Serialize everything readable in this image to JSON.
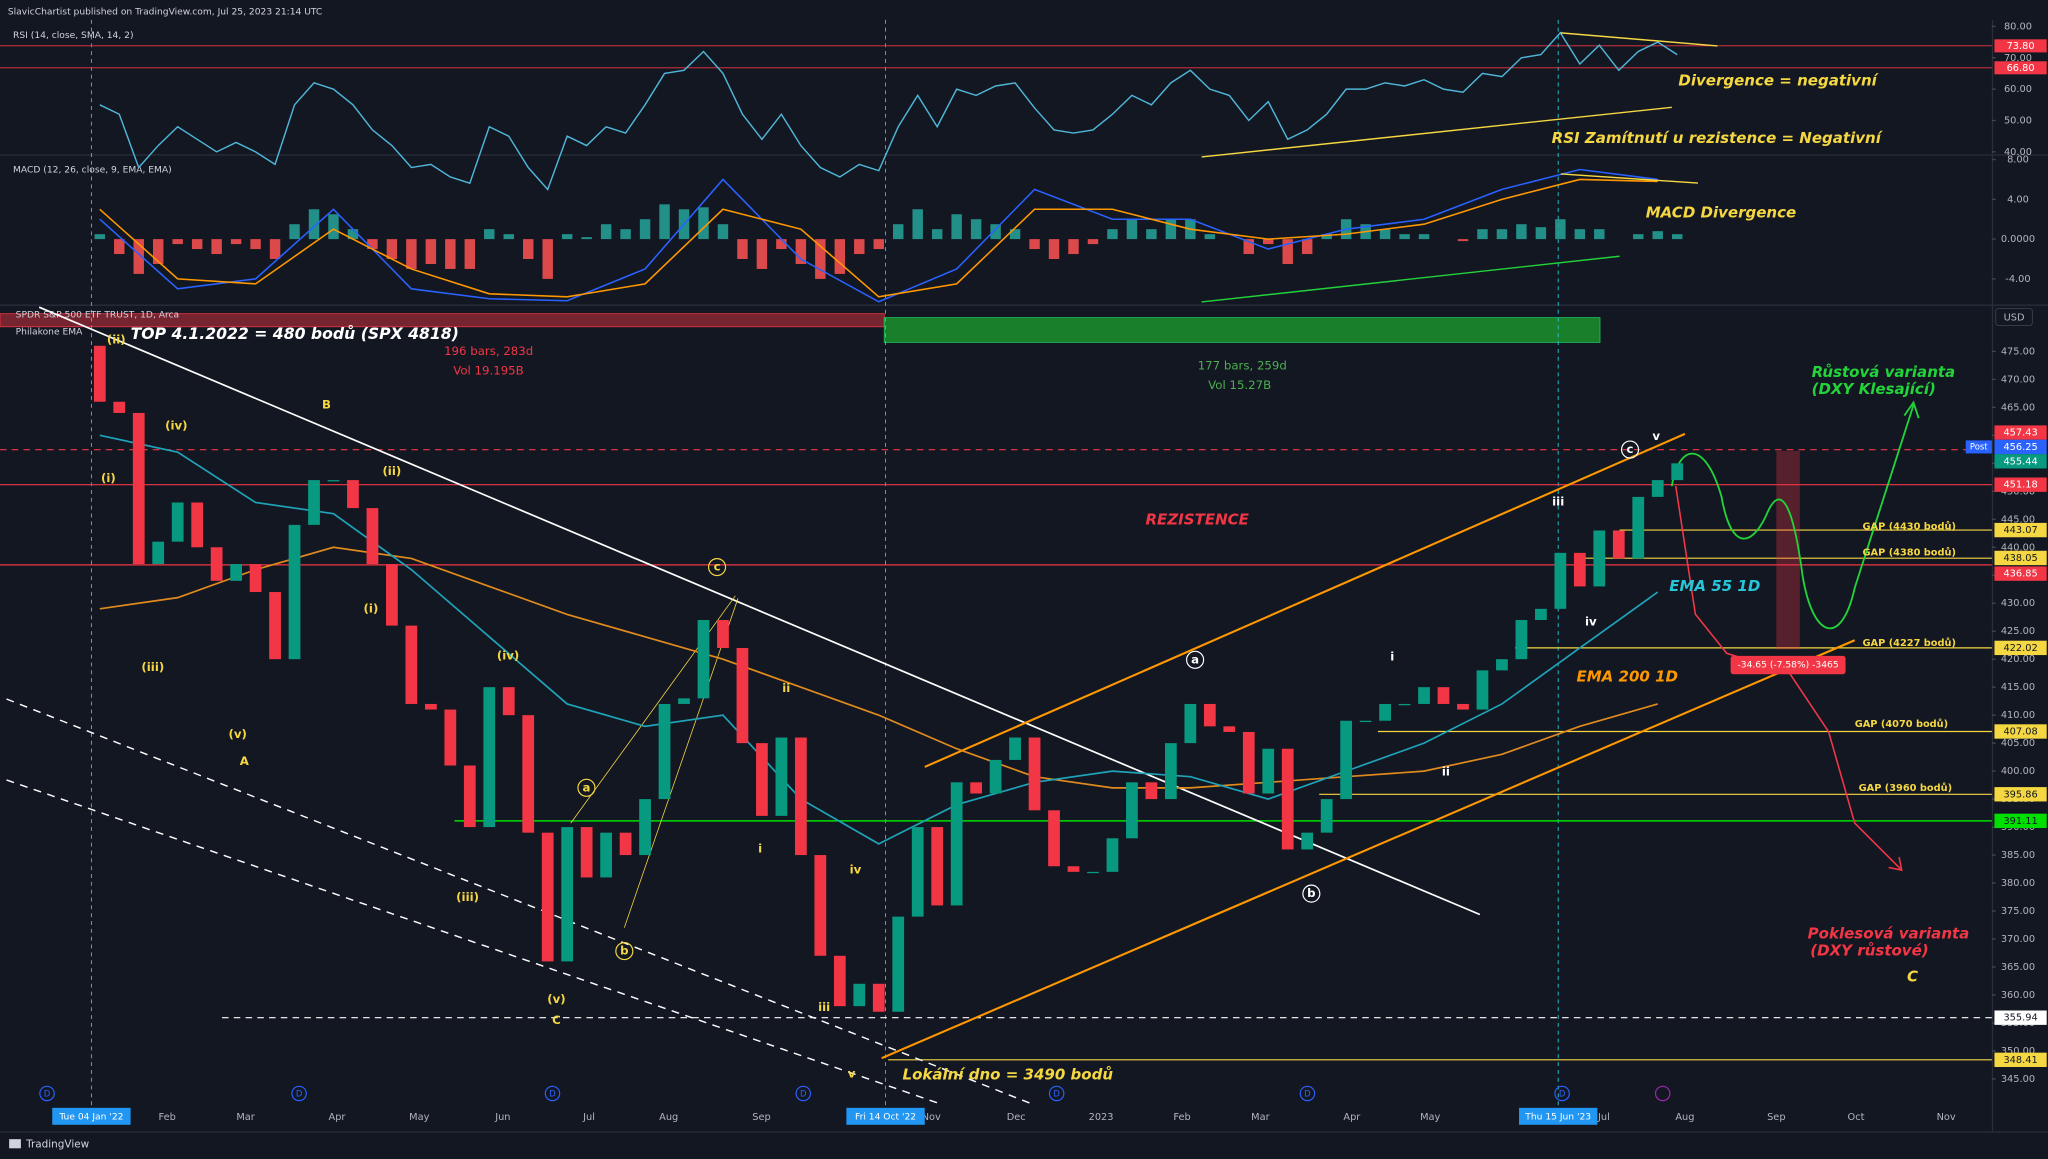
{
  "header": {
    "publisher": "SlavicChartist published on TradingView.com, Jul 25, 2023 21:14 UTC"
  },
  "chart_data": [
    {
      "type": "line",
      "title": "RSI (14, close, SMA, 14, 2)",
      "color": "#4fb6d8",
      "values": [
        55,
        52,
        35,
        42,
        48,
        44,
        40,
        43,
        40,
        36,
        55,
        62,
        60,
        55,
        47,
        42,
        35,
        36,
        32,
        30,
        48,
        45,
        35,
        28,
        45,
        42,
        48,
        46,
        55,
        65,
        66,
        72,
        65,
        52,
        44,
        52,
        42,
        35,
        32,
        36,
        34,
        48,
        58,
        48,
        60,
        58,
        61,
        62,
        54,
        47,
        46,
        47,
        52,
        58,
        55,
        62,
        66,
        60,
        58,
        50,
        56,
        44,
        47,
        52,
        60,
        60,
        62,
        61,
        63,
        60,
        59,
        65,
        64,
        70,
        71,
        78,
        68,
        74,
        66,
        72,
        75,
        71
      ],
      "ylim": [
        39.2,
        82.1
      ],
      "yticks": [
        {
          "value": 40,
          "label": "40.00"
        },
        {
          "value": 50,
          "label": "50.00"
        },
        {
          "value": 60,
          "label": "60.00"
        },
        {
          "value": 70,
          "label": "70.00"
        },
        {
          "value": 80,
          "label": "80.00"
        }
      ],
      "levels": [
        {
          "value": 73.8,
          "label": "73.80",
          "color": "#f23645"
        },
        {
          "value": 66.8,
          "label": "66.80",
          "color": "#f23645"
        }
      ]
    },
    {
      "type": "macd",
      "title": "MACD (12, 26, close, 9, EMA, EMA)",
      "histogram": [
        0.5,
        -1.5,
        -3.5,
        -2.5,
        -0.5,
        -1,
        -1.5,
        -0.5,
        -1,
        -2,
        1.5,
        3,
        2.5,
        1,
        -1,
        -2,
        -3,
        -2.5,
        -3,
        -3,
        1,
        0.5,
        -2,
        -4,
        0.5,
        0.2,
        1.5,
        1,
        2,
        3.5,
        3,
        3.2,
        1.5,
        -2,
        -3,
        -1,
        -2.5,
        -4,
        -3.5,
        -1.5,
        -1,
        1.5,
        3,
        1,
        2.5,
        2,
        1.5,
        1,
        -1,
        -2,
        -1.5,
        -0.5,
        1,
        2,
        1,
        2,
        2,
        0.5,
        0,
        -1.5,
        -0.5,
        -2.5,
        -1.5,
        0.5,
        2,
        1.5,
        1,
        0.5,
        0.5,
        0,
        -0.2,
        1,
        1,
        1.5,
        1.2,
        2,
        1,
        1,
        0,
        0.5,
        0.8,
        0.5
      ],
      "macd": [
        2,
        -5,
        -4,
        3,
        -5,
        -6,
        -6.2,
        -3,
        6,
        -2,
        -6.3,
        -3,
        5,
        2,
        2,
        -1,
        1,
        2,
        5,
        7,
        6
      ],
      "signal": [
        3,
        -4,
        -4.5,
        1,
        -3,
        -5.5,
        -5.8,
        -4.5,
        3,
        1,
        -5.8,
        -4.5,
        3,
        3,
        1,
        0,
        0.5,
        1.5,
        4,
        6,
        5.8
      ],
      "macd_color": "#2962ff",
      "signal_color": "#ff9800",
      "up_color": "#26a69a",
      "down_color": "#ff5252",
      "ylim": [
        -6.45,
        8.26
      ],
      "yticks": [
        {
          "value": -4,
          "label": "-4.00"
        },
        {
          "value": 0,
          "label": "0.0000"
        },
        {
          "value": 4,
          "label": "4.00"
        },
        {
          "value": 8,
          "label": "8.00"
        }
      ]
    },
    {
      "type": "candlestick",
      "title": "SPDR S&P 500 ETF TRUST, 1D, Arca",
      "subtitle": "Philakone EMA",
      "currency": "USD",
      "open": [
        476,
        466,
        464,
        437,
        441,
        448,
        440,
        434,
        437,
        432,
        420,
        444,
        452,
        452,
        447,
        437,
        426,
        412,
        411,
        401,
        390,
        415,
        410,
        389,
        366,
        390,
        381,
        389,
        385,
        395,
        412,
        413,
        427,
        422,
        405,
        392,
        406,
        385,
        367,
        358,
        362,
        357,
        374,
        390,
        376,
        398,
        396,
        402,
        406,
        393,
        383,
        382,
        382,
        388,
        398,
        395,
        405,
        412,
        408,
        407,
        396,
        404,
        386,
        389,
        395,
        409,
        409,
        412,
        412,
        415,
        412,
        411,
        418,
        420,
        427,
        429,
        439,
        433,
        443,
        438,
        449,
        452
      ],
      "close": [
        466,
        464,
        437,
        441,
        448,
        440,
        434,
        437,
        432,
        420,
        444,
        452,
        452,
        447,
        437,
        426,
        412,
        411,
        401,
        390,
        415,
        410,
        389,
        366,
        390,
        381,
        389,
        385,
        395,
        412,
        413,
        427,
        422,
        405,
        392,
        406,
        385,
        367,
        358,
        362,
        357,
        374,
        390,
        376,
        398,
        396,
        402,
        406,
        393,
        383,
        382,
        382,
        388,
        398,
        395,
        405,
        412,
        408,
        407,
        396,
        404,
        386,
        389,
        395,
        409,
        409,
        412,
        412,
        415,
        412,
        411,
        418,
        420,
        427,
        429,
        439,
        433,
        443,
        438,
        449,
        452,
        455
      ],
      "ema55": [
        460,
        457,
        448,
        446,
        436,
        424,
        412,
        408,
        410,
        395,
        387,
        394,
        398,
        400,
        399,
        395,
        400,
        405,
        412,
        422,
        432
      ],
      "ema200": [
        429,
        431,
        436,
        440,
        438,
        433,
        428,
        424,
        420,
        415,
        410,
        404,
        399,
        397,
        397,
        398,
        399,
        400,
        403,
        408,
        412
      ],
      "up_color": "#089981",
      "down_color": "#f23645",
      "ema55_color": "#1fa3b8",
      "ema200_color": "#e08a1e",
      "ylim": [
        340.3,
        482.9
      ],
      "yticks": [
        {
          "value": 345,
          "label": "345.00"
        },
        {
          "value": 350,
          "label": "350.00"
        },
        {
          "value": 355,
          "label": "355.00"
        },
        {
          "value": 360,
          "label": "360.00"
        },
        {
          "value": 365,
          "label": "365.00"
        },
        {
          "value": 370,
          "label": "370.00"
        },
        {
          "value": 375,
          "label": "375.00"
        },
        {
          "value": 380,
          "label": "380.00"
        },
        {
          "value": 385,
          "label": "385.00"
        },
        {
          "value": 390,
          "label": "390.00"
        },
        {
          "value": 395,
          "label": "395.00"
        },
        {
          "value": 400,
          "label": "400.00"
        },
        {
          "value": 405,
          "label": "405.00"
        },
        {
          "value": 410,
          "label": "410.00"
        },
        {
          "value": 415,
          "label": "415.00"
        },
        {
          "value": 420,
          "label": "420.00"
        },
        {
          "value": 425,
          "label": "425.00"
        },
        {
          "value": 430,
          "label": "430.00"
        },
        {
          "value": 435,
          "label": "435.00"
        },
        {
          "value": 440,
          "label": "440.00"
        },
        {
          "value": 445,
          "label": "445.00"
        },
        {
          "value": 450,
          "label": "450.00"
        },
        {
          "value": 455,
          "label": "455.00"
        },
        {
          "value": 460,
          "label": "460.00"
        },
        {
          "value": 465,
          "label": "465.00"
        },
        {
          "value": 470,
          "label": "470.00"
        },
        {
          "value": 475,
          "label": "475.00"
        }
      ],
      "price_labels": [
        {
          "value": 457.43,
          "label": "457.43",
          "color": "#f23645"
        },
        {
          "value": 456.25,
          "label": "456.25",
          "color": "#2962ff"
        },
        {
          "value": 455.44,
          "label": "455.44",
          "color": "#089981"
        },
        {
          "value": 451.18,
          "label": "451.18",
          "color": "#f23645"
        },
        {
          "value": 443.07,
          "label": "443.07",
          "color": "#f5d742"
        },
        {
          "value": 438.05,
          "label": "438.05",
          "color": "#f5d742"
        },
        {
          "value": 436.85,
          "label": "436.85",
          "color": "#f23645"
        },
        {
          "value": 422.02,
          "label": "422.02",
          "color": "#f5d742"
        },
        {
          "value": 407.08,
          "label": "407.08",
          "color": "#f5d742"
        },
        {
          "value": 395.86,
          "label": "395.86",
          "color": "#f5d742"
        },
        {
          "value": 391.11,
          "label": "391.11",
          "color": "#00e000"
        },
        {
          "value": 355.94,
          "label": "355.94",
          "color": "#ffffff"
        },
        {
          "value": 348.41,
          "label": "348.41",
          "color": "#f5d742"
        }
      ],
      "post_label": "Post"
    }
  ],
  "time_axis": {
    "labels": [
      "Feb",
      "Mar",
      "Apr",
      "May",
      "Jun",
      "Jul",
      "Aug",
      "Sep",
      "Nov",
      "Dec",
      "2023",
      "Feb",
      "Mar",
      "Apr",
      "May",
      "Jul",
      "Aug",
      "Sep",
      "Oct",
      "Nov"
    ],
    "highlights": [
      "Tue 04 Jan '22",
      "Fri 14 Oct '22",
      "Thu 15 Jun '23"
    ],
    "dividend_marker": "D"
  },
  "annotations": [
    {
      "text": "TOP 4.1.2022 = 480 bodů (SPX 4818)",
      "color": "#ffffff"
    },
    {
      "text": "196 bars, 283d",
      "color": "#f23645"
    },
    {
      "text": "Vol 19.195B",
      "color": "#f23645"
    },
    {
      "text": "177 bars, 259d",
      "color": "#4caf50"
    },
    {
      "text": "Vol 15.27B",
      "color": "#4caf50"
    },
    {
      "text": "REZISTENCE",
      "color": "#f23645"
    },
    {
      "text": "Růstová varianta",
      "color": "#22d33a"
    },
    {
      "text": "(DXY Klesající)",
      "color": "#22d33a"
    },
    {
      "text": "EMA 55 1D",
      "color": "#26c6da"
    },
    {
      "text": "EMA 200 1D",
      "color": "#ff9800"
    },
    {
      "text": "GAP (4430 bodů)",
      "color": "#f5d742"
    },
    {
      "text": "GAP (4380 bodů)",
      "color": "#f5d742"
    },
    {
      "text": "GAP (4227 bodů)",
      "color": "#f5d742"
    },
    {
      "text": "GAP (4070 bodů)",
      "color": "#f5d742"
    },
    {
      "text": "GAP (3960 bodů)",
      "color": "#f5d742"
    },
    {
      "text": "-34.65 (-7.58%) -3465",
      "color": "#ffffff"
    },
    {
      "text": "Poklesová varianta",
      "color": "#f23645"
    },
    {
      "text": "(DXY růstové)",
      "color": "#f23645"
    },
    {
      "text": "C",
      "color": "#f5d742"
    },
    {
      "text": "Lokální dno = 3490 bodů",
      "color": "#f5d742"
    },
    {
      "text": "Divergence = negativní",
      "color": "#f5d742"
    },
    {
      "text": "RSI Zamítnutí u rezistence = Negativní",
      "color": "#f5d742"
    },
    {
      "text": "MACD Divergence",
      "color": "#f5d742"
    }
  ],
  "wave_labels": [
    {
      "text": "(ii)",
      "color": "#f5d742"
    },
    {
      "text": "(iv)",
      "color": "#f5d742"
    },
    {
      "text": "(i)",
      "color": "#f5d742"
    },
    {
      "text": "(iii)",
      "color": "#f5d742"
    },
    {
      "text": "(v)",
      "color": "#f5d742"
    },
    {
      "text": "A",
      "color": "#f5d742"
    },
    {
      "text": "B",
      "color": "#f5d742"
    },
    {
      "text": "(ii)",
      "color": "#f5d742"
    },
    {
      "text": "(i)",
      "color": "#f5d742"
    },
    {
      "text": "(iv)",
      "color": "#f5d742"
    },
    {
      "text": "(iii)",
      "color": "#f5d742"
    },
    {
      "text": "(v)",
      "color": "#f5d742"
    },
    {
      "text": "C",
      "color": "#f5d742"
    },
    {
      "text": "a",
      "color": "#f5d742"
    },
    {
      "text": "b",
      "color": "#f5d742"
    },
    {
      "text": "c",
      "color": "#f5d742"
    },
    {
      "text": "ii",
      "color": "#f5d742"
    },
    {
      "text": "i",
      "color": "#f5d742"
    },
    {
      "text": "iv",
      "color": "#f5d742"
    },
    {
      "text": "iii",
      "color": "#f5d742"
    },
    {
      "text": "v",
      "color": "#f5d742"
    },
    {
      "text": "a",
      "color": "#ffffff"
    },
    {
      "text": "b",
      "color": "#ffffff"
    },
    {
      "text": "i",
      "color": "#ffffff"
    },
    {
      "text": "ii",
      "color": "#ffffff"
    },
    {
      "text": "iii",
      "color": "#ffffff"
    },
    {
      "text": "iv",
      "color": "#ffffff"
    },
    {
      "text": "c",
      "color": "#ffffff"
    },
    {
      "text": "v",
      "color": "#ffffff"
    }
  ],
  "footer": "TradingView"
}
